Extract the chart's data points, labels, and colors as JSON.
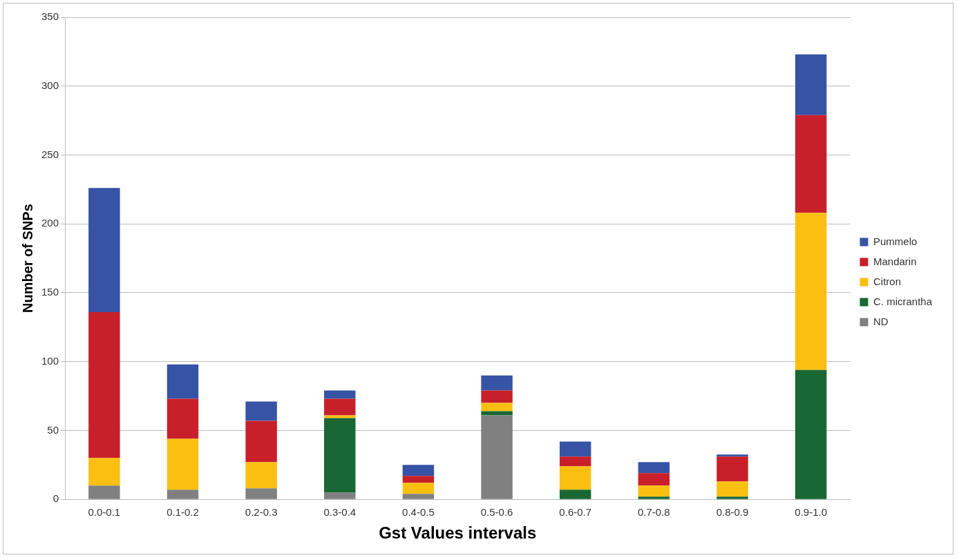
{
  "chart_data": {
    "type": "bar",
    "stacked": true,
    "xlabel": "Gst Values intervals",
    "ylabel": "Number of SNPs",
    "categories": [
      "0.0-0.1",
      "0.1-0.2",
      "0.2-0.3",
      "0.3-0.4",
      "0.4-0.5",
      "0.5-0.6",
      "0.6-0.7",
      "0.7-0.8",
      "0.8-0.9",
      "0.9-1.0"
    ],
    "series": [
      {
        "name": "ND",
        "color": "#808080",
        "values": [
          10,
          7,
          8,
          5,
          4,
          61,
          0,
          0,
          0,
          0
        ]
      },
      {
        "name": "C. micrantha",
        "color": "#196734",
        "values": [
          0,
          0,
          0,
          54,
          0,
          3,
          7,
          2,
          2,
          94
        ]
      },
      {
        "name": "Citron",
        "color": "#fbbf12",
        "values": [
          20,
          37,
          19,
          2,
          8,
          6,
          17,
          8,
          11,
          114
        ]
      },
      {
        "name": "Mandarin",
        "color": "#c8202a",
        "values": [
          106,
          29,
          30,
          12,
          5,
          9,
          7,
          9,
          18,
          71
        ]
      },
      {
        "name": "Pummelo",
        "color": "#3653a5",
        "values": [
          90,
          25,
          14,
          6,
          8,
          11,
          11,
          8,
          1.5,
          44
        ]
      }
    ],
    "ylim": [
      0,
      350
    ],
    "yticks": [
      0,
      50,
      100,
      150,
      200,
      250,
      300,
      350
    ],
    "grid": "y",
    "legend": "right"
  }
}
